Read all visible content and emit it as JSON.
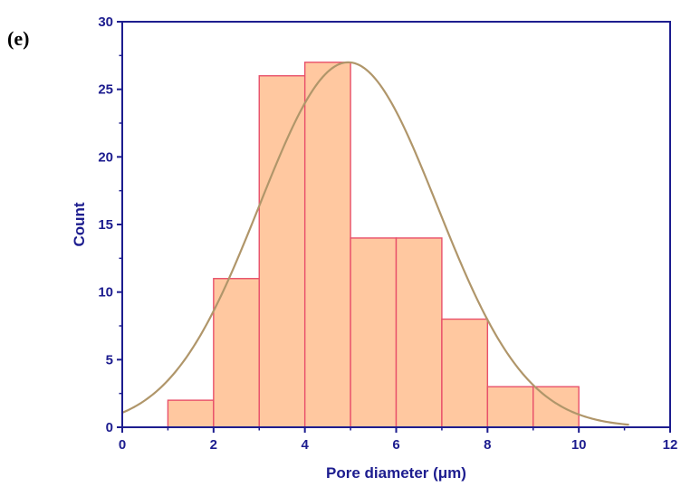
{
  "panel_label": "(e)",
  "colors": {
    "axis": "#1d1d8f",
    "bar_fill": "#ffc8a0",
    "bar_stroke": "#e8506a",
    "curve": "#b0966a"
  },
  "chart_data": {
    "type": "bar",
    "subtype": "histogram",
    "xlabel": "Pore diameter (μm)",
    "ylabel": "Count",
    "xlim": [
      0,
      12
    ],
    "ylim": [
      0,
      30
    ],
    "xticks": [
      "0",
      "2",
      "4",
      "6",
      "8",
      "10",
      "12"
    ],
    "yticks": [
      "0",
      "5",
      "10",
      "15",
      "20",
      "25",
      "30"
    ],
    "bins": [
      {
        "from": 1,
        "to": 2,
        "count": 2
      },
      {
        "from": 2,
        "to": 3,
        "count": 11
      },
      {
        "from": 3,
        "to": 4,
        "count": 26
      },
      {
        "from": 4,
        "to": 5,
        "count": 27
      },
      {
        "from": 5,
        "to": 6,
        "count": 14
      },
      {
        "from": 6,
        "to": 7,
        "count": 14
      },
      {
        "from": 7,
        "to": 8,
        "count": 8
      },
      {
        "from": 8,
        "to": 9,
        "count": 3
      },
      {
        "from": 9,
        "to": 10,
        "count": 3
      }
    ],
    "fit_curve": {
      "type": "normal",
      "mean": 4.95,
      "sd": 1.95,
      "peak": 27,
      "x_range": [
        0,
        11.1
      ]
    },
    "grid": false,
    "legend": "none"
  }
}
